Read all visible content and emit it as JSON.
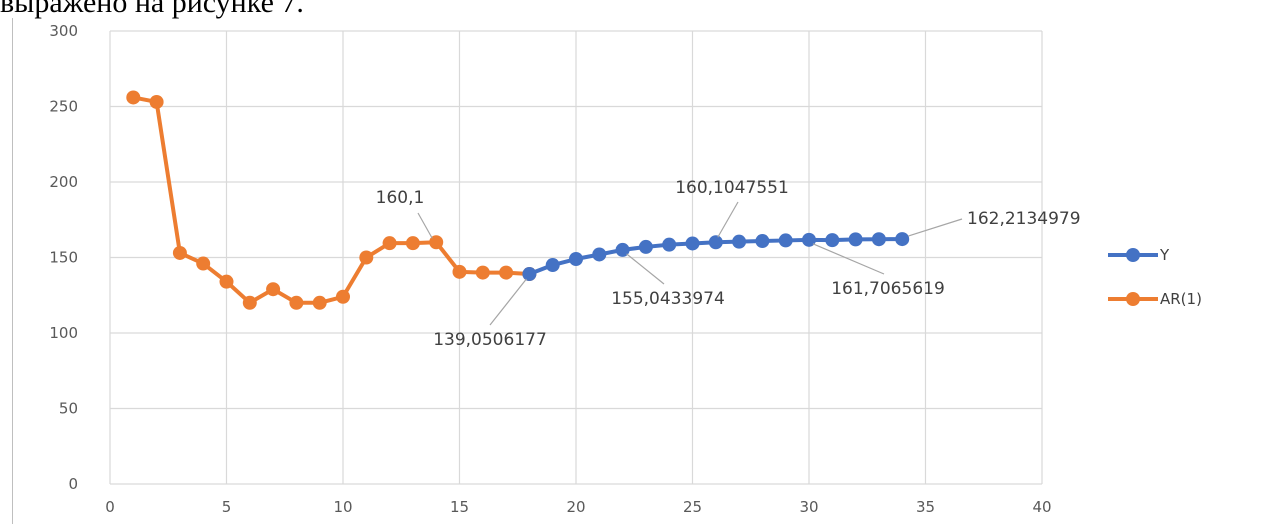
{
  "caption": "выражено на рисунке 7.",
  "chart_data": {
    "type": "line",
    "xlim": [
      0,
      40
    ],
    "ylim": [
      0,
      300
    ],
    "x_ticks": [
      0,
      5,
      10,
      15,
      20,
      25,
      30,
      35,
      40
    ],
    "y_ticks": [
      0,
      50,
      100,
      150,
      200,
      250,
      300
    ],
    "grid": true,
    "legend_position": "right",
    "series": [
      {
        "name": "Y",
        "color": "#4472c4",
        "x": [
          18,
          19,
          20,
          21,
          22,
          23,
          24,
          25,
          26,
          27,
          28,
          29,
          30,
          31,
          32,
          33,
          34
        ],
        "y": [
          139.05,
          145,
          149,
          152,
          155.04,
          157,
          158.5,
          159.3,
          160.1,
          160.5,
          160.9,
          161.3,
          161.7,
          161.5,
          162,
          162.1,
          162.2
        ]
      },
      {
        "name": "AR(1)",
        "color": "#ed7d31",
        "x": [
          1,
          2,
          3,
          4,
          5,
          6,
          7,
          8,
          9,
          10,
          11,
          12,
          13,
          14,
          15,
          16,
          17,
          18
        ],
        "y": [
          256,
          253,
          153,
          146,
          134,
          120,
          129,
          120,
          120,
          124,
          150,
          159.5,
          159.5,
          160.1,
          140.5,
          140,
          140,
          139.05
        ]
      }
    ],
    "annotations": [
      {
        "text": "160,1",
        "x": 14,
        "y": 160.1
      },
      {
        "text": "139,0506177",
        "x": 18,
        "y": 139.0506177
      },
      {
        "text": "155,0433974",
        "x": 22,
        "y": 155.0433974
      },
      {
        "text": "160,1047551",
        "x": 26,
        "y": 160.1047551
      },
      {
        "text": "161,7065619",
        "x": 30,
        "y": 161.7065619
      },
      {
        "text": "162,2134979",
        "x": 34,
        "y": 162.2134979
      }
    ]
  }
}
